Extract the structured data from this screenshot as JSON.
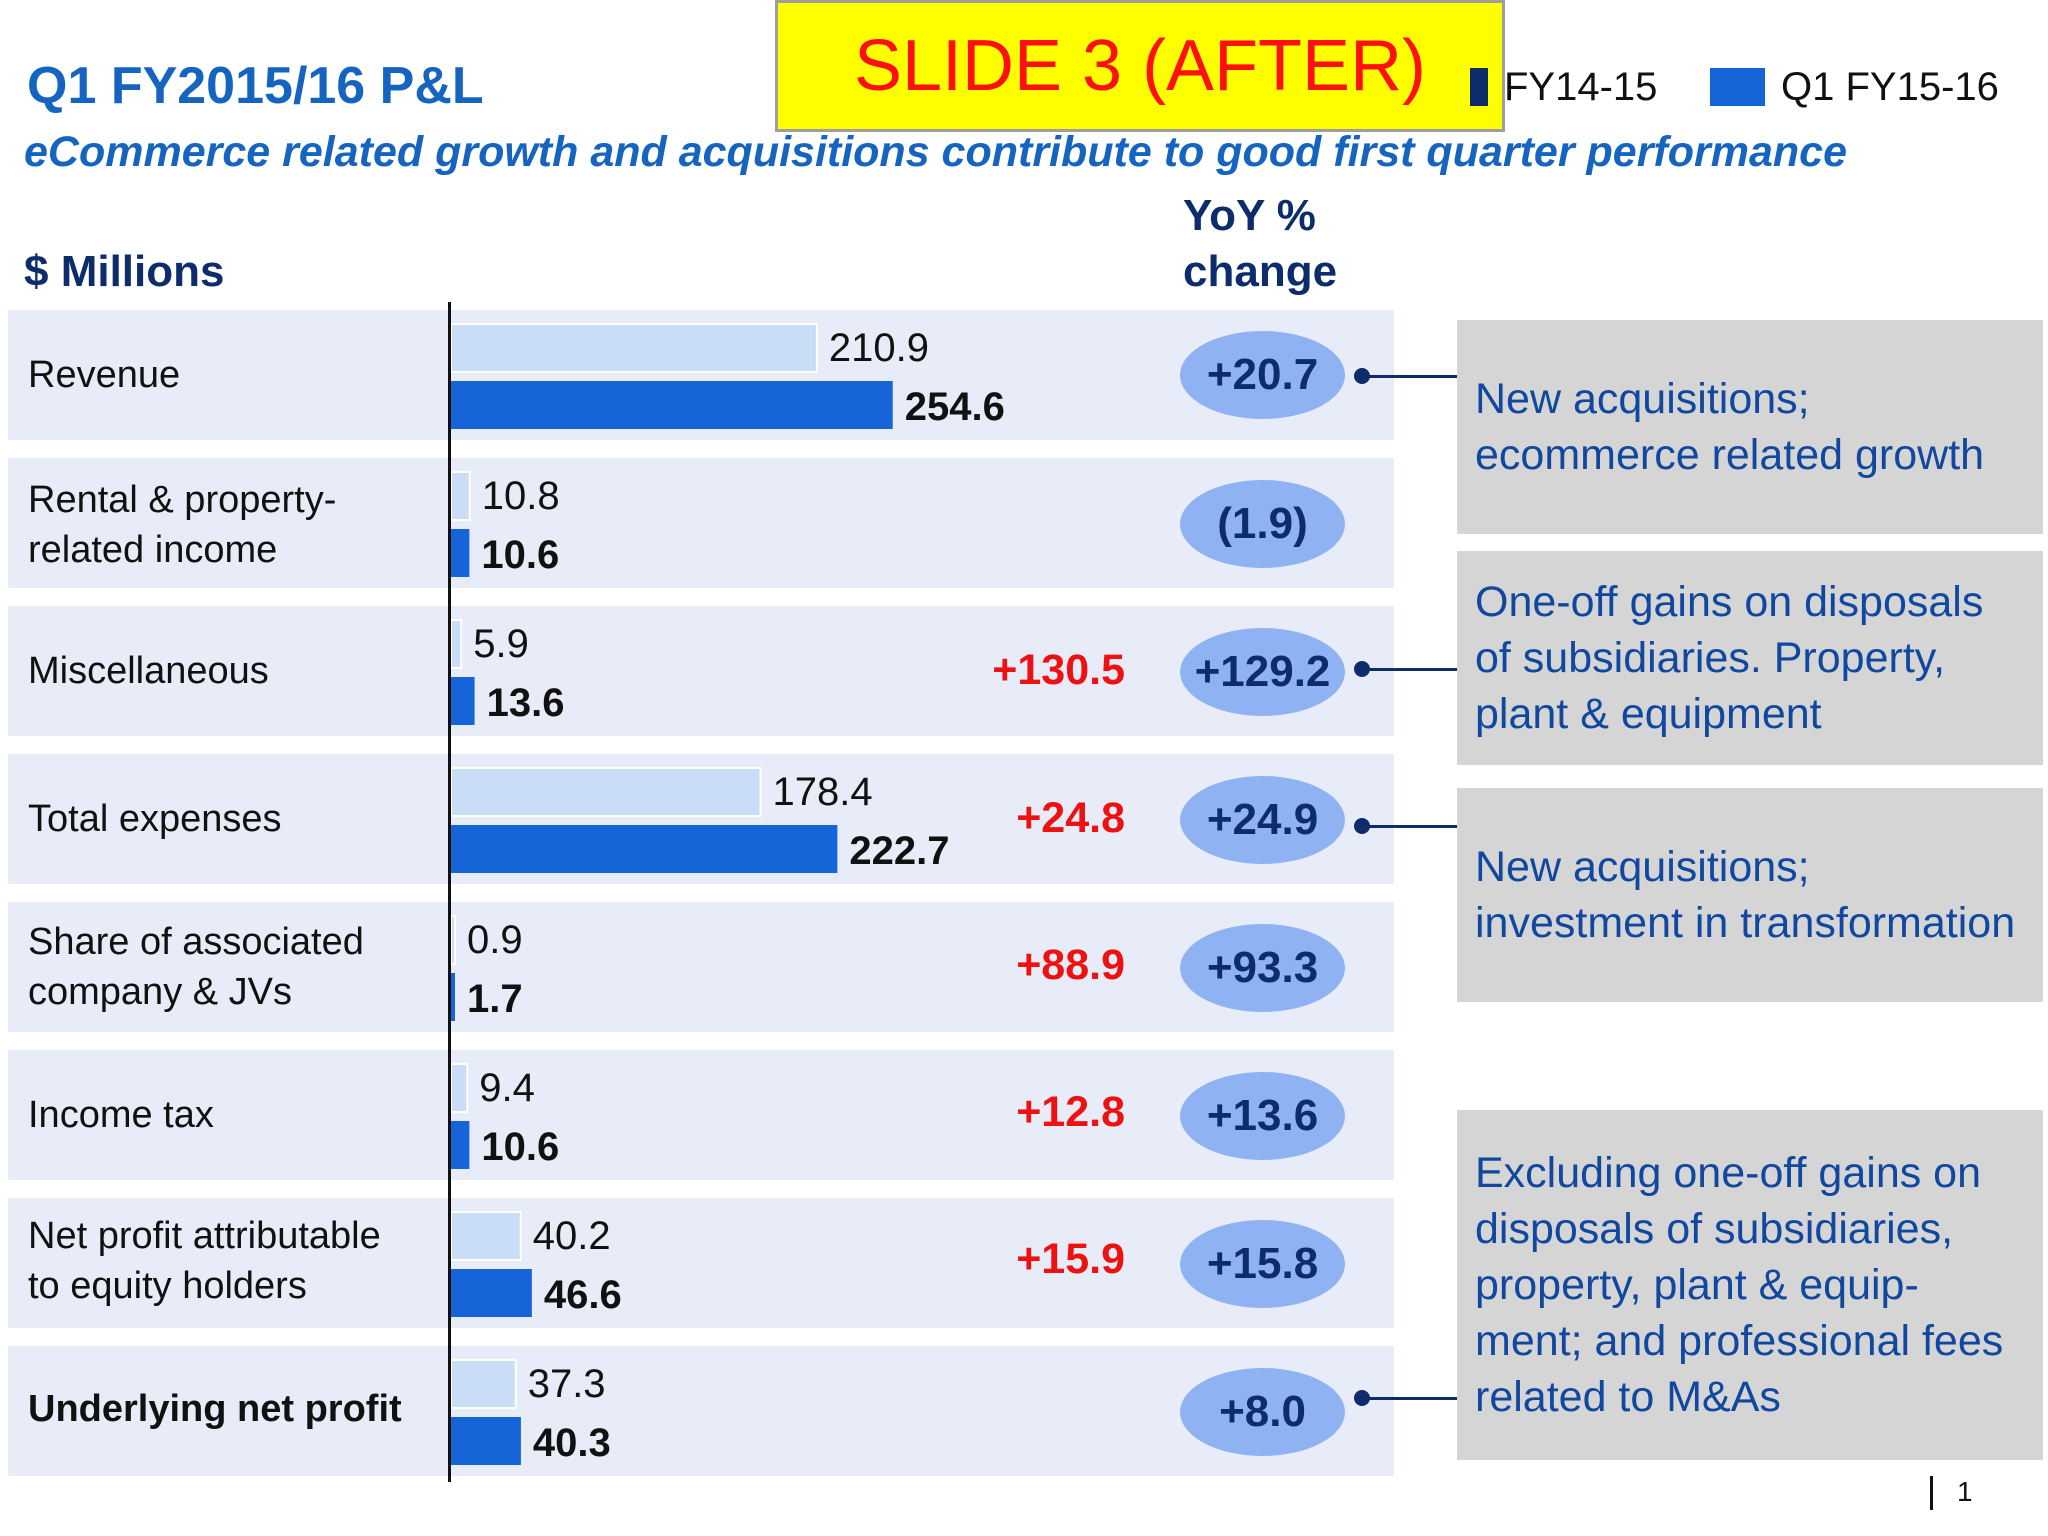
{
  "title": "Q1 FY2015/16 P&L",
  "subtitle": "eCommerce related growth and acquisitions contribute to good first quarter performance",
  "banner": "SLIDE 3 (AFTER)",
  "legend": {
    "prev_label": "FY14-15",
    "curr_label": "Q1 FY15-16"
  },
  "units_label": "$ Millions",
  "yoy_header": {
    "line1": "YoY %",
    "line2": "change"
  },
  "colors": {
    "prev": "#c9ddf7",
    "curr": "#1565d8",
    "pill": "#8fb2f2",
    "red": "#ee1111",
    "navy": "#0d2c6c"
  },
  "rows": [
    {
      "label_lines": [
        "Revenue"
      ],
      "bold": false,
      "yoy": "+20.7",
      "red_change": ""
    },
    {
      "label_lines": [
        "Rental & property-",
        "related income"
      ],
      "bold": false,
      "yoy": "(1.9)",
      "red_change": ""
    },
    {
      "label_lines": [
        "Miscellaneous"
      ],
      "bold": false,
      "yoy": "+129.2",
      "red_change": "+130.5"
    },
    {
      "label_lines": [
        "Total expenses"
      ],
      "bold": false,
      "yoy": "+24.9",
      "red_change": "+24.8"
    },
    {
      "label_lines": [
        "Share of associated",
        "company & JVs"
      ],
      "bold": false,
      "yoy": "+93.3",
      "red_change": "+88.9"
    },
    {
      "label_lines": [
        "Income tax"
      ],
      "bold": false,
      "yoy": "+13.6",
      "red_change": "+12.8"
    },
    {
      "label_lines": [
        "Net profit attributable",
        "to equity holders"
      ],
      "bold": false,
      "yoy": "+15.8",
      "red_change": "+15.9"
    },
    {
      "label_lines": [
        "Underlying net profit"
      ],
      "bold": true,
      "yoy": "+8.0",
      "red_change": ""
    }
  ],
  "notes": [
    {
      "text": "New acquisitions; ecommerce related growth"
    },
    {
      "text": "One-off gains on disposals of subsidiaries. Property, plant & equipment"
    },
    {
      "text": "New acquisitions; investment in transformation"
    },
    {
      "text": "Excluding one-off gains on disposals of subsidiaries, property, plant & equip-ment; and professional fees related to M&As"
    }
  ],
  "page_number": "1",
  "chart_data": {
    "type": "bar",
    "orientation": "horizontal",
    "title": "Q1 FY2015/16 P&L",
    "ylabel": "$ Millions",
    "categories": [
      "Revenue",
      "Rental & property-related income",
      "Miscellaneous",
      "Total expenses",
      "Share of associated company & JVs",
      "Income tax",
      "Net profit attributable to equity holders",
      "Underlying net profit"
    ],
    "series": [
      {
        "name": "FY14-15",
        "values": [
          210.9,
          10.8,
          5.9,
          178.4,
          0.9,
          9.4,
          40.2,
          37.3
        ],
        "labels": [
          "210.9",
          "10.8",
          "5.9",
          "178.4",
          "0.9",
          "9.4",
          "40.2",
          "37.3"
        ]
      },
      {
        "name": "Q1 FY15-16",
        "values": [
          254.6,
          10.6,
          13.6,
          222.7,
          1.7,
          10.6,
          46.6,
          40.3
        ],
        "labels": [
          "254.6",
          "10.6",
          "13.6",
          "222.7",
          "1.7",
          "10.6",
          "46.6",
          "40.3"
        ]
      }
    ],
    "xlim": [
      0,
      400
    ],
    "legend": "top-right"
  }
}
